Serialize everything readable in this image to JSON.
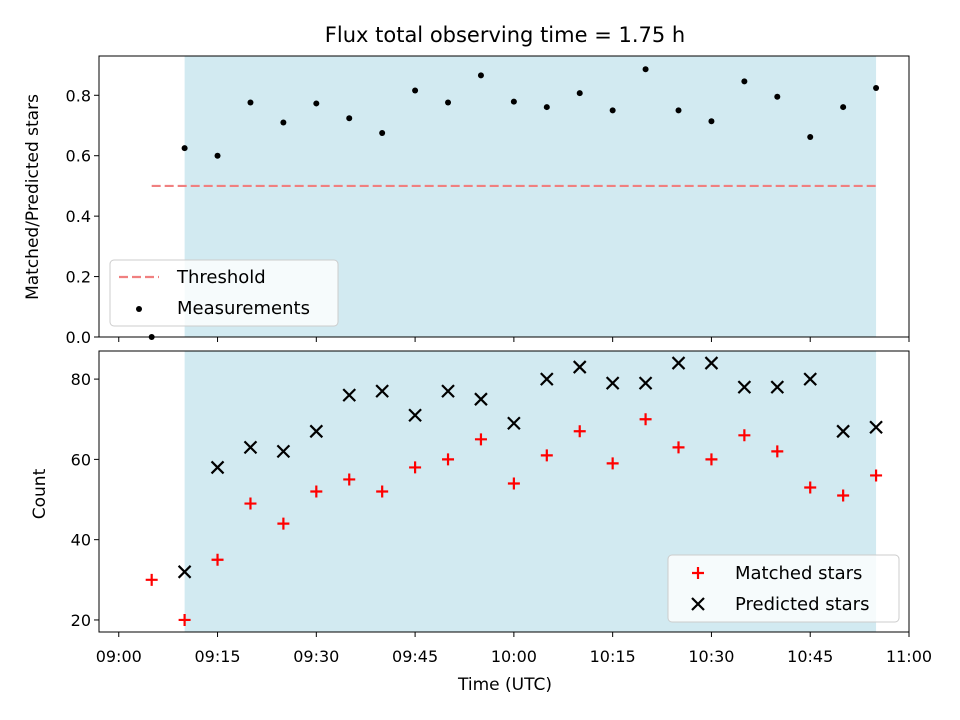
{
  "title": "Flux total observing time = 1.75 h",
  "colors": {
    "threshold": "#f08080",
    "measurement": "#000000",
    "matched": "#ff0000",
    "predicted": "#000000",
    "observing_band": "#add8e6"
  },
  "chart_data": [
    {
      "type": "scatter",
      "ylabel": "Matched/Predicted stars",
      "ylim": [
        0,
        0.93
      ],
      "yticks": [
        "0.0",
        "0.2",
        "0.4",
        "0.6",
        "0.8"
      ],
      "grid": false,
      "legend_position": "lower-left",
      "observing_band": [
        "09:10",
        "10:55"
      ],
      "threshold": {
        "name": "Threshold",
        "value": 0.5,
        "x_range": [
          "09:05",
          "10:55"
        ]
      },
      "series": [
        {
          "name": "Measurements",
          "x": [
            "09:05",
            "09:10",
            "09:15",
            "09:20",
            "09:25",
            "09:30",
            "09:35",
            "09:40",
            "09:45",
            "09:50",
            "09:55",
            "10:00",
            "10:05",
            "10:10",
            "10:15",
            "10:20",
            "10:25",
            "10:30",
            "10:35",
            "10:40",
            "10:45",
            "10:50",
            "10:55"
          ],
          "y": [
            0.0,
            0.625,
            0.6,
            0.776,
            0.71,
            0.773,
            0.724,
            0.675,
            0.816,
            0.776,
            0.866,
            0.779,
            0.761,
            0.807,
            0.75,
            0.886,
            0.75,
            0.714,
            0.846,
            0.795,
            0.662,
            0.761,
            0.824
          ]
        }
      ]
    },
    {
      "type": "scatter",
      "xlabel": "Time (UTC)",
      "ylabel": "Count",
      "xlim": [
        "08:57",
        "11:00"
      ],
      "ylim": [
        17,
        87
      ],
      "xticks": [
        "09:00",
        "09:15",
        "09:30",
        "09:45",
        "10:00",
        "10:15",
        "10:30",
        "10:45",
        "11:00"
      ],
      "yticks": [
        "20",
        "40",
        "60",
        "80"
      ],
      "grid": false,
      "legend_position": "lower-right",
      "observing_band": [
        "09:10",
        "10:55"
      ],
      "series": [
        {
          "name": "Matched stars",
          "marker": "plus",
          "x": [
            "09:05",
            "09:10",
            "09:15",
            "09:20",
            "09:25",
            "09:30",
            "09:35",
            "09:40",
            "09:45",
            "09:50",
            "09:55",
            "10:00",
            "10:05",
            "10:10",
            "10:15",
            "10:20",
            "10:25",
            "10:30",
            "10:35",
            "10:40",
            "10:45",
            "10:50",
            "10:55"
          ],
          "y": [
            30,
            20,
            35,
            49,
            44,
            52,
            55,
            52,
            58,
            60,
            65,
            54,
            61,
            67,
            59,
            70,
            63,
            60,
            66,
            62,
            53,
            51,
            56
          ]
        },
        {
          "name": "Predicted stars",
          "marker": "x",
          "x": [
            "09:10",
            "09:15",
            "09:20",
            "09:25",
            "09:30",
            "09:35",
            "09:40",
            "09:45",
            "09:50",
            "09:55",
            "10:00",
            "10:05",
            "10:10",
            "10:15",
            "10:20",
            "10:25",
            "10:30",
            "10:35",
            "10:40",
            "10:45",
            "10:50",
            "10:55"
          ],
          "y": [
            32,
            58,
            63,
            62,
            67,
            76,
            77,
            71,
            77,
            75,
            69,
            80,
            83,
            79,
            79,
            84,
            84,
            78,
            78,
            80,
            67,
            68
          ]
        }
      ]
    }
  ]
}
